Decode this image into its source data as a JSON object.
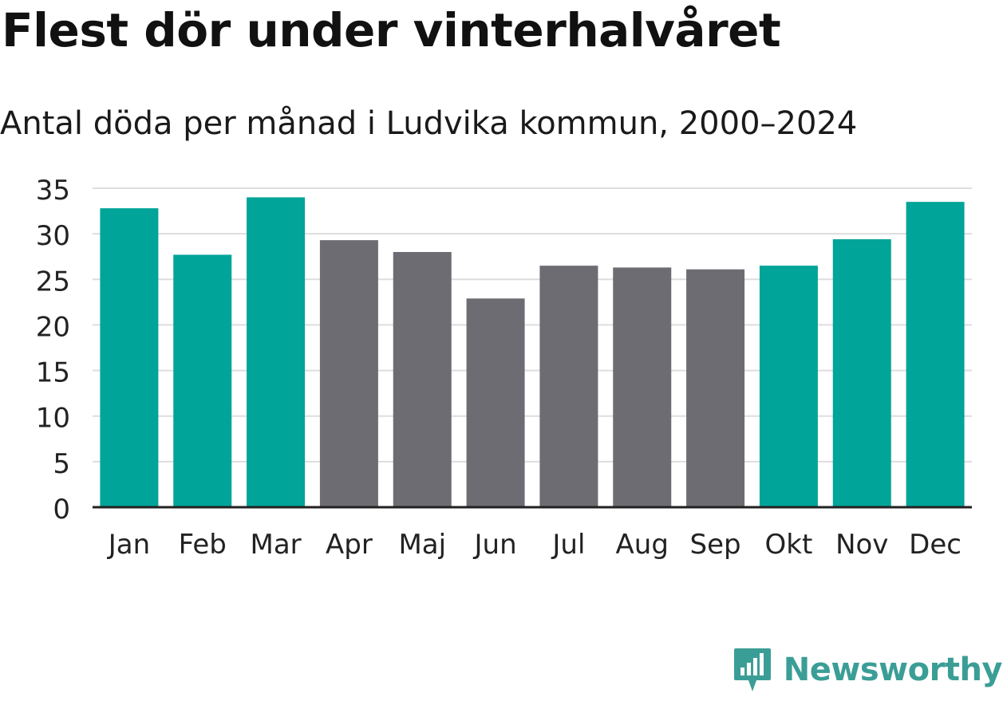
{
  "header": {
    "title": "Flest dör under vinterhalvåret",
    "subtitle": "Antal döda per månad i Ludvika kommun, 2000–2024"
  },
  "colors": {
    "winter": "#00a499",
    "summer": "#6d6c72",
    "grid": "#dddddd",
    "axis": "#222222",
    "brand": "#3b9e96"
  },
  "brand": {
    "name": "Newsworthy",
    "icon": "bar-chart-bubble-icon"
  },
  "chart_data": {
    "type": "bar",
    "title": "Flest dör under vinterhalvåret",
    "subtitle": "Antal döda per månad i Ludvika kommun, 2000–2024",
    "xlabel": "",
    "ylabel": "",
    "categories": [
      "Jan",
      "Feb",
      "Mar",
      "Apr",
      "Maj",
      "Jun",
      "Jul",
      "Aug",
      "Sep",
      "Okt",
      "Nov",
      "Dec"
    ],
    "values": [
      32.8,
      27.7,
      34.0,
      29.3,
      28.0,
      22.9,
      26.5,
      26.3,
      26.1,
      26.5,
      29.4,
      33.5
    ],
    "highlight": [
      true,
      true,
      true,
      false,
      false,
      false,
      false,
      false,
      false,
      true,
      true,
      true
    ],
    "ylim": [
      0,
      35
    ],
    "yticks": [
      0,
      5,
      10,
      15,
      20,
      25,
      30,
      35
    ],
    "grid": true
  }
}
